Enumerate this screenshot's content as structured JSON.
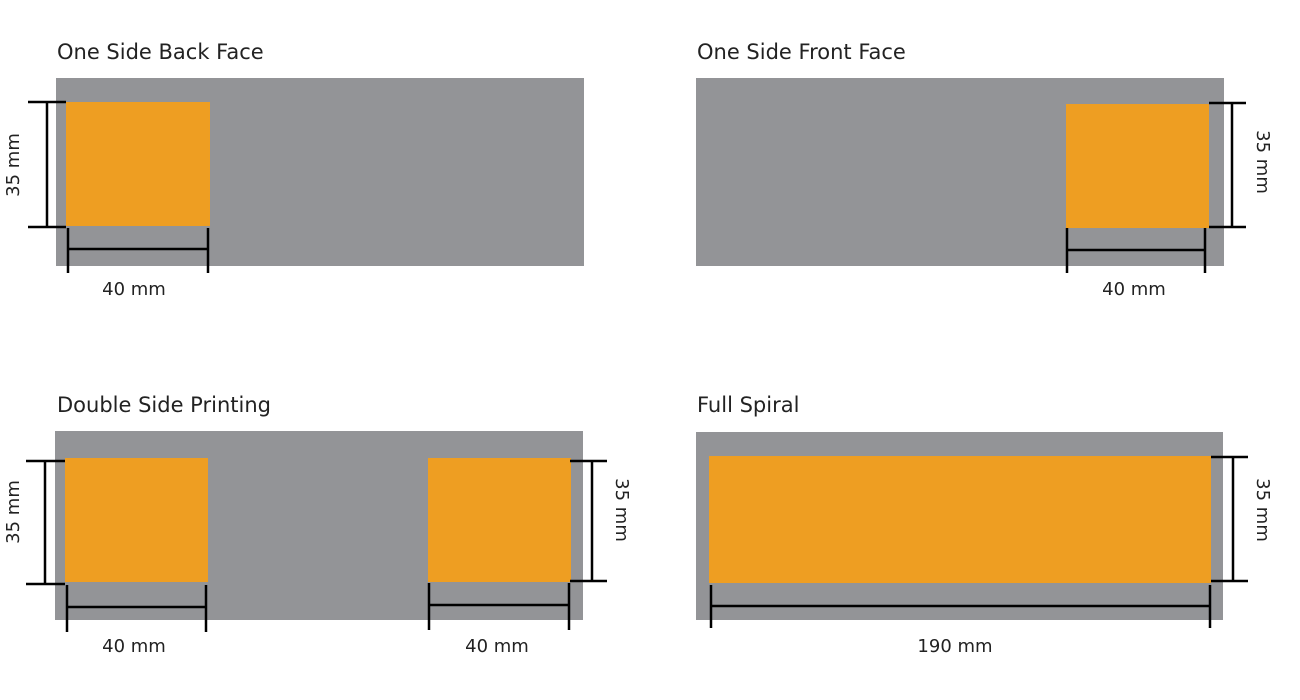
{
  "panels": [
    {
      "title": "One Side Back Face",
      "height_label": "35 mm",
      "width_label": "40 mm"
    },
    {
      "title": "One Side Front Face",
      "height_label": "35 mm",
      "width_label": "40 mm"
    },
    {
      "title": "Double Side Printing",
      "height_labels": [
        "35 mm",
        "35 mm"
      ],
      "width_labels": [
        "40 mm",
        "40 mm"
      ]
    },
    {
      "title": "Full Spiral",
      "height_label": "35 mm",
      "width_label": "190 mm"
    }
  ]
}
